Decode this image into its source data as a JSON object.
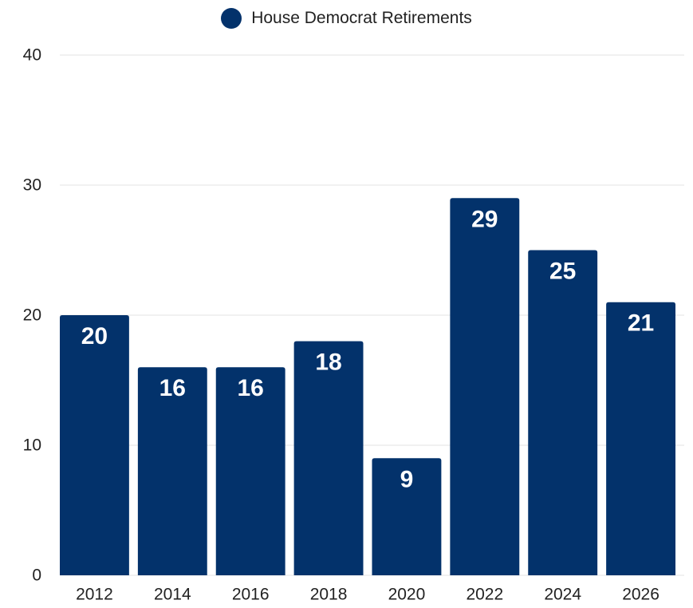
{
  "legend": {
    "label": "House Democrat Retirements"
  },
  "colors": {
    "bar": "#03326B",
    "grid": "#e3e3e3",
    "axis_text": "#222222",
    "data_label": "#ffffff"
  },
  "chart_data": {
    "type": "bar",
    "categories": [
      "2012",
      "2014",
      "2016",
      "2018",
      "2020",
      "2022",
      "2024",
      "2026"
    ],
    "series": [
      {
        "name": "House Democrat Retirements",
        "values": [
          20,
          16,
          16,
          18,
          9,
          29,
          25,
          21
        ]
      }
    ],
    "data_labels": [
      "20",
      "16",
      "16",
      "18",
      "9",
      "29",
      "25",
      "21"
    ],
    "ylim": [
      0,
      40
    ],
    "yticks": [
      0,
      10,
      20,
      30,
      40
    ],
    "ytick_labels": [
      "0",
      "10",
      "20",
      "30",
      "40"
    ],
    "grid": true,
    "legend_position": "top-center"
  }
}
